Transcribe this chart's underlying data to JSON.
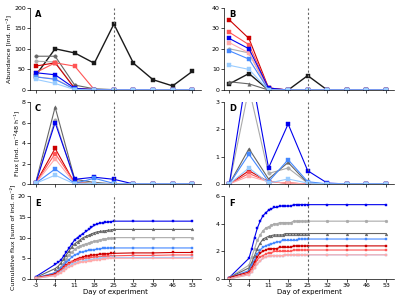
{
  "x_days": [
    -3,
    4,
    11,
    18,
    25,
    32,
    39,
    46,
    53
  ],
  "x_dense": [
    -3,
    4,
    11,
    18,
    25,
    32,
    39,
    46,
    53
  ],
  "dashed_x": 25,
  "background_color": "#ffffff",
  "panel_A": {
    "title": "A",
    "ylabel": "Abundance [ind. m⁻²]",
    "ylim": [
      0,
      200
    ],
    "yticks": [
      0,
      50,
      100,
      150,
      200
    ],
    "series": [
      {
        "color": "#1a1a1a",
        "marker": "s",
        "lw": 1.0,
        "ms": 3,
        "values": [
          35,
          100,
          90,
          65,
          160,
          65,
          25,
          10,
          45
        ]
      },
      {
        "color": "#666666",
        "marker": "o",
        "lw": 0.8,
        "ms": 2.5,
        "values": [
          82,
          82,
          12,
          3,
          1,
          0,
          0,
          0,
          0
        ]
      },
      {
        "color": "#aaaaaa",
        "marker": "o",
        "lw": 0.8,
        "ms": 2.5,
        "values": [
          70,
          68,
          4,
          1,
          0,
          0,
          0,
          0,
          0
        ]
      },
      {
        "color": "#cc0000",
        "marker": "s",
        "lw": 0.8,
        "ms": 2.5,
        "values": [
          58,
          66,
          4,
          1,
          0,
          0,
          0,
          0,
          0
        ]
      },
      {
        "color": "#ff5555",
        "marker": "s",
        "lw": 0.8,
        "ms": 2.5,
        "values": [
          42,
          66,
          58,
          1,
          0,
          0,
          0,
          0,
          0
        ]
      },
      {
        "color": "#ffaaaa",
        "marker": "s",
        "lw": 0.8,
        "ms": 2.5,
        "values": [
          32,
          27,
          2,
          1,
          0,
          0,
          0,
          0,
          0
        ]
      },
      {
        "color": "#0000ee",
        "marker": "s",
        "lw": 0.8,
        "ms": 2.5,
        "values": [
          42,
          37,
          4,
          1,
          0,
          0,
          0,
          0,
          0
        ]
      },
      {
        "color": "#4488ff",
        "marker": "s",
        "lw": 0.8,
        "ms": 2.5,
        "values": [
          32,
          26,
          2,
          0,
          0,
          0,
          0,
          0,
          0
        ]
      },
      {
        "color": "#99ccff",
        "marker": "s",
        "lw": 0.8,
        "ms": 2.5,
        "values": [
          26,
          16,
          1,
          0,
          0,
          0,
          0,
          0,
          0
        ]
      }
    ]
  },
  "panel_B": {
    "title": "B",
    "ylabel": "",
    "ylim": [
      0,
      40
    ],
    "yticks": [
      0,
      10,
      20,
      30,
      40
    ],
    "series": [
      {
        "color": "#1a1a1a",
        "marker": "s",
        "lw": 1.0,
        "ms": 3,
        "values": [
          3,
          8,
          0,
          0,
          7,
          0,
          0,
          0,
          0
        ]
      },
      {
        "color": "#666666",
        "marker": "^",
        "lw": 0.8,
        "ms": 2.5,
        "values": [
          4,
          3,
          0,
          0,
          0,
          0,
          0,
          0,
          0
        ]
      },
      {
        "color": "#aaaaaa",
        "marker": "o",
        "lw": 0.8,
        "ms": 2.5,
        "values": [
          20,
          18,
          0,
          0,
          0,
          0,
          0,
          0,
          0
        ]
      },
      {
        "color": "#cc0000",
        "marker": "s",
        "lw": 0.8,
        "ms": 2.5,
        "values": [
          34,
          25,
          1,
          0,
          0,
          0,
          0,
          0,
          0
        ]
      },
      {
        "color": "#ff5555",
        "marker": "s",
        "lw": 0.8,
        "ms": 2.5,
        "values": [
          28,
          22,
          1,
          0,
          0,
          0,
          0,
          0,
          0
        ]
      },
      {
        "color": "#ffaaaa",
        "marker": "s",
        "lw": 0.8,
        "ms": 2.5,
        "values": [
          23,
          18,
          0,
          0,
          0,
          0,
          0,
          0,
          0
        ]
      },
      {
        "color": "#0000ee",
        "marker": "s",
        "lw": 0.8,
        "ms": 2.5,
        "values": [
          25,
          20,
          1,
          0,
          0,
          0,
          0,
          0,
          0
        ]
      },
      {
        "color": "#4488ff",
        "marker": "s",
        "lw": 0.8,
        "ms": 2.5,
        "values": [
          19,
          15,
          0,
          0,
          0,
          0,
          0,
          0,
          0
        ]
      },
      {
        "color": "#99ccff",
        "marker": "s",
        "lw": 0.8,
        "ms": 2.5,
        "values": [
          12,
          10,
          0,
          0,
          0,
          0,
          0,
          0,
          0
        ]
      }
    ]
  },
  "panel_C": {
    "title": "C",
    "ylabel": "Flux [ind. m⁻²48 h⁻¹]",
    "ylim": [
      0,
      8
    ],
    "yticks": [
      0,
      2,
      4,
      6,
      8
    ],
    "series": [
      {
        "color": "#666666",
        "marker": "^",
        "lw": 0.8,
        "ms": 2.5,
        "values": [
          0.1,
          7.5,
          0.5,
          0.2,
          0.05,
          0.05,
          0.05,
          0.05,
          0.05
        ]
      },
      {
        "color": "#aaaaaa",
        "marker": "o",
        "lw": 0.8,
        "ms": 2.5,
        "values": [
          0.1,
          6.3,
          0.3,
          0.1,
          0.05,
          0.05,
          0.05,
          0.05,
          0.05
        ]
      },
      {
        "color": "#cc0000",
        "marker": "s",
        "lw": 0.8,
        "ms": 2.5,
        "values": [
          0.1,
          3.5,
          0.1,
          0.05,
          0.05,
          0.05,
          0.05,
          0.05,
          0.05
        ]
      },
      {
        "color": "#ff5555",
        "marker": "s",
        "lw": 0.8,
        "ms": 2.5,
        "values": [
          0.1,
          3.0,
          0.2,
          0.05,
          0.05,
          0.05,
          0.05,
          0.05,
          0.05
        ]
      },
      {
        "color": "#ffaaaa",
        "marker": "s",
        "lw": 0.8,
        "ms": 2.5,
        "values": [
          0.1,
          2.5,
          0.1,
          0.05,
          0.05,
          0.05,
          0.05,
          0.05,
          0.05
        ]
      },
      {
        "color": "#0000ee",
        "marker": "s",
        "lw": 0.8,
        "ms": 2.5,
        "values": [
          0.1,
          6.0,
          0.5,
          0.7,
          0.5,
          0.05,
          0.05,
          0.05,
          0.05
        ]
      },
      {
        "color": "#4488ff",
        "marker": "s",
        "lw": 0.8,
        "ms": 2.5,
        "values": [
          0.1,
          1.5,
          0.1,
          0.6,
          0.1,
          0.05,
          0.05,
          0.05,
          0.05
        ]
      },
      {
        "color": "#99ccff",
        "marker": "s",
        "lw": 0.8,
        "ms": 2.5,
        "values": [
          0.1,
          0.9,
          0.05,
          0.1,
          0.05,
          0.05,
          0.05,
          0.05,
          0.05
        ]
      }
    ]
  },
  "panel_D": {
    "title": "D",
    "ylabel": "",
    "ylim": [
      0,
      3
    ],
    "yticks": [
      0,
      1,
      2,
      3
    ],
    "series": [
      {
        "color": "#aaaaaa",
        "marker": "o",
        "lw": 0.8,
        "ms": 2.5,
        "values": [
          0.02,
          3.5,
          0.4,
          0.6,
          0.05,
          0.02,
          0.02,
          0.02,
          0.02
        ]
      },
      {
        "color": "#666666",
        "marker": "^",
        "lw": 0.8,
        "ms": 2.5,
        "values": [
          0.02,
          1.3,
          0.2,
          0.8,
          0.05,
          0.02,
          0.02,
          0.02,
          0.02
        ]
      },
      {
        "color": "#cc0000",
        "marker": "s",
        "lw": 0.8,
        "ms": 2.5,
        "values": [
          0.02,
          0.5,
          0.1,
          0.05,
          0.02,
          0.02,
          0.02,
          0.02,
          0.02
        ]
      },
      {
        "color": "#ff5555",
        "marker": "s",
        "lw": 0.8,
        "ms": 2.5,
        "values": [
          0.02,
          0.4,
          0.1,
          0.05,
          0.02,
          0.02,
          0.02,
          0.02,
          0.02
        ]
      },
      {
        "color": "#ffaaaa",
        "marker": "s",
        "lw": 0.8,
        "ms": 2.5,
        "values": [
          0.02,
          0.3,
          0.1,
          0.05,
          0.02,
          0.02,
          0.02,
          0.02,
          0.02
        ]
      },
      {
        "color": "#0000ee",
        "marker": "s",
        "lw": 0.8,
        "ms": 2.5,
        "values": [
          0.02,
          4.5,
          0.6,
          2.2,
          0.5,
          0.05,
          0.02,
          0.02,
          0.02
        ]
      },
      {
        "color": "#4488ff",
        "marker": "s",
        "lw": 0.8,
        "ms": 2.5,
        "values": [
          0.02,
          1.1,
          0.1,
          0.9,
          0.1,
          0.02,
          0.02,
          0.02,
          0.02
        ]
      },
      {
        "color": "#99ccff",
        "marker": "s",
        "lw": 0.8,
        "ms": 2.5,
        "values": [
          0.02,
          0.6,
          0.05,
          0.2,
          0.05,
          0.02,
          0.02,
          0.02,
          0.02
        ]
      }
    ]
  },
  "panel_E": {
    "title": "E",
    "ylabel": "Cumulative flux [sum of ind. m⁻²]",
    "ylim": [
      0,
      20
    ],
    "yticks": [
      0,
      5,
      10,
      15,
      20
    ],
    "x_dense": [
      -3,
      4,
      5,
      6,
      7,
      8,
      9,
      10,
      11,
      12,
      13,
      14,
      15,
      16,
      17,
      18,
      19,
      20,
      21,
      22,
      23,
      24,
      25,
      32,
      39,
      46,
      53
    ],
    "series": [
      {
        "color": "#0000ee",
        "marker": "s",
        "lw": 0.8,
        "ms": 2,
        "values": [
          0.5,
          3.5,
          4.0,
          4.5,
          5.5,
          6.5,
          7.5,
          8.5,
          9.5,
          10.0,
          10.5,
          11.0,
          11.5,
          12.0,
          12.5,
          13.0,
          13.3,
          13.5,
          13.6,
          13.7,
          13.8,
          13.9,
          14.0,
          14.0,
          14.0,
          14.0,
          14.0
        ]
      },
      {
        "color": "#666666",
        "marker": "^",
        "lw": 0.8,
        "ms": 2,
        "values": [
          0.3,
          2.5,
          3.0,
          3.8,
          4.8,
          5.8,
          6.8,
          7.8,
          8.5,
          9.0,
          9.5,
          10.0,
          10.3,
          10.6,
          10.9,
          11.2,
          11.4,
          11.5,
          11.6,
          11.7,
          11.8,
          11.9,
          12.0,
          12.0,
          12.0,
          12.0,
          12.0
        ]
      },
      {
        "color": "#aaaaaa",
        "marker": "o",
        "lw": 0.8,
        "ms": 2,
        "values": [
          0.2,
          1.5,
          2.0,
          2.8,
          3.8,
          4.8,
          5.8,
          6.5,
          7.2,
          7.7,
          8.0,
          8.3,
          8.5,
          8.7,
          8.9,
          9.1,
          9.3,
          9.5,
          9.6,
          9.7,
          9.8,
          9.9,
          10.0,
          10.0,
          10.0,
          10.0,
          10.0
        ]
      },
      {
        "color": "#4488ff",
        "marker": "s",
        "lw": 0.8,
        "ms": 2,
        "values": [
          0.2,
          1.5,
          2.0,
          2.6,
          3.3,
          4.0,
          4.7,
          5.3,
          5.8,
          6.1,
          6.4,
          6.6,
          6.8,
          6.9,
          7.0,
          7.1,
          7.2,
          7.3,
          7.4,
          7.4,
          7.5,
          7.5,
          7.5,
          7.5,
          7.5,
          7.5,
          7.5
        ]
      },
      {
        "color": "#cc0000",
        "marker": "s",
        "lw": 0.8,
        "ms": 2,
        "values": [
          0.2,
          1.2,
          1.7,
          2.2,
          2.8,
          3.4,
          3.8,
          4.2,
          4.6,
          4.9,
          5.1,
          5.3,
          5.5,
          5.6,
          5.7,
          5.8,
          5.9,
          6.0,
          6.0,
          6.1,
          6.1,
          6.2,
          6.2,
          6.3,
          6.3,
          6.4,
          6.4
        ]
      },
      {
        "color": "#ff5555",
        "marker": "s",
        "lw": 0.8,
        "ms": 2,
        "values": [
          0.2,
          1.0,
          1.5,
          2.0,
          2.6,
          3.2,
          3.6,
          4.0,
          4.3,
          4.6,
          4.8,
          4.9,
          5.0,
          5.1,
          5.2,
          5.3,
          5.4,
          5.4,
          5.5,
          5.5,
          5.5,
          5.6,
          5.6,
          5.7,
          5.7,
          5.8,
          5.8
        ]
      },
      {
        "color": "#99ccff",
        "marker": "s",
        "lw": 0.8,
        "ms": 2,
        "values": [
          0.1,
          0.8,
          1.2,
          1.7,
          2.2,
          2.7,
          3.1,
          3.5,
          3.8,
          4.0,
          4.2,
          4.3,
          4.5,
          4.6,
          4.7,
          4.8,
          4.9,
          5.0,
          5.0,
          5.1,
          5.1,
          5.2,
          5.2,
          5.2,
          5.2,
          5.2,
          5.2
        ]
      },
      {
        "color": "#ffaaaa",
        "marker": "s",
        "lw": 0.8,
        "ms": 2,
        "values": [
          0.1,
          0.8,
          1.1,
          1.5,
          2.0,
          2.5,
          2.9,
          3.2,
          3.5,
          3.8,
          4.0,
          4.1,
          4.2,
          4.3,
          4.4,
          4.5,
          4.6,
          4.7,
          4.8,
          4.9,
          5.0,
          5.0,
          5.0,
          5.0,
          5.0,
          5.0,
          5.0
        ]
      }
    ]
  },
  "panel_F": {
    "title": "F",
    "ylabel": "",
    "ylim": [
      0,
      6
    ],
    "yticks": [
      0,
      2,
      4,
      6
    ],
    "x_dense": [
      -3,
      4,
      5,
      6,
      7,
      8,
      9,
      10,
      11,
      12,
      13,
      14,
      15,
      16,
      17,
      18,
      19,
      20,
      21,
      22,
      23,
      24,
      25,
      32,
      39,
      46,
      53
    ],
    "series": [
      {
        "color": "#0000ee",
        "marker": "s",
        "lw": 0.8,
        "ms": 2,
        "values": [
          0.1,
          1.5,
          2.2,
          3.0,
          3.7,
          4.2,
          4.6,
          4.8,
          5.0,
          5.1,
          5.2,
          5.2,
          5.3,
          5.3,
          5.3,
          5.3,
          5.3,
          5.4,
          5.4,
          5.4,
          5.4,
          5.4,
          5.4,
          5.4,
          5.4,
          5.4,
          5.4
        ]
      },
      {
        "color": "#aaaaaa",
        "marker": "o",
        "lw": 0.8,
        "ms": 2,
        "values": [
          0.1,
          1.0,
          1.6,
          2.2,
          2.8,
          3.2,
          3.5,
          3.7,
          3.8,
          3.9,
          4.0,
          4.0,
          4.1,
          4.1,
          4.1,
          4.1,
          4.1,
          4.2,
          4.2,
          4.2,
          4.2,
          4.2,
          4.2,
          4.2,
          4.2,
          4.2,
          4.2
        ]
      },
      {
        "color": "#666666",
        "marker": "^",
        "lw": 0.8,
        "ms": 2,
        "values": [
          0.1,
          0.8,
          1.2,
          1.7,
          2.2,
          2.6,
          2.9,
          3.0,
          3.1,
          3.15,
          3.2,
          3.2,
          3.2,
          3.2,
          3.3,
          3.3,
          3.3,
          3.3,
          3.3,
          3.3,
          3.3,
          3.3,
          3.3,
          3.3,
          3.3,
          3.3,
          3.3
        ]
      },
      {
        "color": "#4488ff",
        "marker": "s",
        "lw": 0.8,
        "ms": 2,
        "values": [
          0.1,
          0.6,
          1.0,
          1.4,
          1.8,
          2.1,
          2.3,
          2.4,
          2.5,
          2.55,
          2.6,
          2.7,
          2.7,
          2.8,
          2.8,
          2.8,
          2.8,
          2.8,
          2.8,
          2.9,
          2.9,
          2.9,
          2.9,
          2.9,
          2.9,
          2.9,
          2.9
        ]
      },
      {
        "color": "#cc0000",
        "marker": "s",
        "lw": 0.8,
        "ms": 2,
        "values": [
          0.1,
          0.5,
          0.8,
          1.2,
          1.6,
          1.9,
          2.0,
          2.1,
          2.2,
          2.2,
          2.2,
          2.2,
          2.3,
          2.3,
          2.3,
          2.3,
          2.3,
          2.4,
          2.4,
          2.4,
          2.4,
          2.4,
          2.4,
          2.4,
          2.4,
          2.4,
          2.4
        ]
      },
      {
        "color": "#ff5555",
        "marker": "s",
        "lw": 0.8,
        "ms": 2,
        "values": [
          0.0,
          0.4,
          0.7,
          1.0,
          1.4,
          1.6,
          1.7,
          1.8,
          1.9,
          1.9,
          2.0,
          2.0,
          2.0,
          2.0,
          2.0,
          2.0,
          2.0,
          2.1,
          2.1,
          2.1,
          2.1,
          2.1,
          2.1,
          2.1,
          2.1,
          2.1,
          2.1
        ]
      },
      {
        "color": "#99ccff",
        "marker": "s",
        "lw": 0.8,
        "ms": 2,
        "values": [
          0.0,
          0.3,
          0.5,
          0.8,
          1.1,
          1.3,
          1.5,
          1.6,
          1.65,
          1.7,
          1.7,
          1.7,
          1.7,
          1.7,
          1.75,
          1.75,
          1.75,
          1.75,
          1.75,
          1.75,
          1.75,
          1.75,
          1.75,
          1.75,
          1.75,
          1.75,
          1.75
        ]
      },
      {
        "color": "#ffaaaa",
        "marker": "s",
        "lw": 0.8,
        "ms": 2,
        "values": [
          0.0,
          0.3,
          0.5,
          0.8,
          1.1,
          1.3,
          1.5,
          1.6,
          1.65,
          1.7,
          1.7,
          1.7,
          1.7,
          1.7,
          1.75,
          1.75,
          1.75,
          1.75,
          1.75,
          1.75,
          1.75,
          1.75,
          1.75,
          1.75,
          1.75,
          1.75,
          1.75
        ]
      }
    ]
  },
  "xlabel": "Day of experiment",
  "xticks": [
    -3,
    4,
    11,
    18,
    25,
    32,
    39,
    46,
    53
  ]
}
